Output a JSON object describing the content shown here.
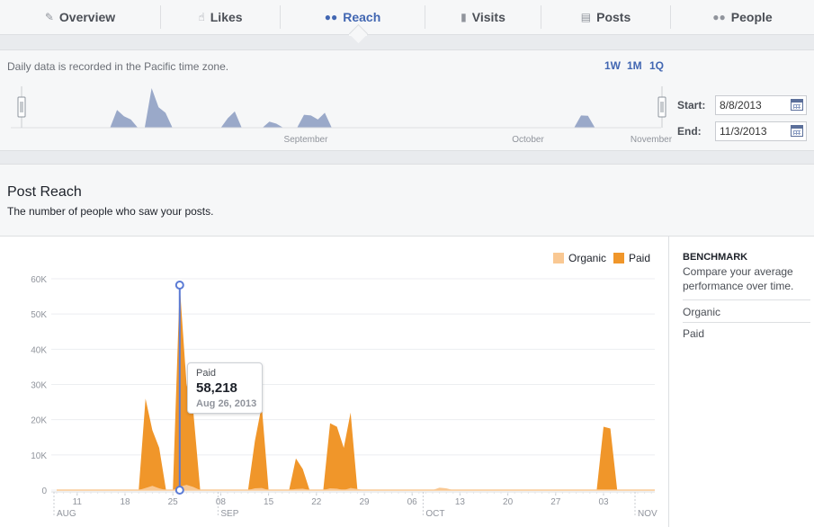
{
  "tabs": [
    {
      "label": "Overview",
      "icon": "megaphone-icon"
    },
    {
      "label": "Likes",
      "icon": "thumbs-up-icon"
    },
    {
      "label": "Reach",
      "icon": "people-icon",
      "active": true
    },
    {
      "label": "Visits",
      "icon": "bar-chart-icon"
    },
    {
      "label": "Posts",
      "icon": "posts-icon"
    },
    {
      "label": "People",
      "icon": "people-group-icon"
    }
  ],
  "range_selector": {
    "note": "Daily data is recorded in the Pacific time zone.",
    "buttons": [
      "1W",
      "1M",
      "1Q"
    ],
    "month_labels": [
      "September",
      "October",
      "November"
    ],
    "start_label": "Start:",
    "start_value": "8/8/2013",
    "end_label": "End:",
    "end_value": "11/3/2013",
    "accent": "#9aa9c9"
  },
  "post_reach": {
    "title": "Post Reach",
    "subtitle": "The number of people who saw your posts."
  },
  "benchmark": {
    "title": "BENCHMARK",
    "description": "Compare your average performance over time.",
    "items": [
      "Organic",
      "Paid"
    ]
  },
  "tooltip": {
    "series": "Paid",
    "value": "58,218",
    "date": "Aug 26, 2013"
  },
  "chart_data": {
    "type": "area",
    "start_date": "2013-08-08",
    "y_ticks": [
      "0",
      "10K",
      "20K",
      "30K",
      "40K",
      "50K",
      "60K"
    ],
    "ylim": [
      0,
      60000
    ],
    "x_tick_labels": [
      "11",
      "18",
      "25",
      "08",
      "15",
      "22",
      "29",
      "06",
      "13",
      "20",
      "27",
      "03"
    ],
    "x_month_labels": [
      "AUG",
      "SEP",
      "OCT",
      "NOV"
    ],
    "legend_position": "top-right",
    "series": [
      {
        "name": "Organic",
        "color": "#f9c893",
        "values": [
          0,
          0,
          0,
          0,
          0,
          0,
          0,
          0,
          0,
          0,
          0,
          0,
          0,
          600,
          1200,
          500,
          0,
          0,
          1000,
          1500,
          900,
          0,
          0,
          0,
          0,
          0,
          0,
          0,
          0,
          500,
          600,
          0,
          0,
          0,
          0,
          300,
          400,
          0,
          0,
          0,
          500,
          400,
          0,
          600,
          300,
          0,
          0,
          0,
          0,
          0,
          0,
          0,
          0,
          0,
          0,
          0,
          700,
          500,
          0,
          0,
          0,
          0,
          0,
          0,
          0,
          0,
          0,
          0,
          0,
          0,
          0,
          0,
          0,
          0,
          0,
          0,
          0,
          0,
          0,
          0,
          0,
          0,
          0,
          0,
          0,
          0,
          0,
          0
        ]
      },
      {
        "name": "Paid",
        "color": "#f0962a",
        "values": [
          0,
          0,
          0,
          0,
          0,
          0,
          0,
          0,
          0,
          0,
          0,
          0,
          0,
          26000,
          17000,
          12000,
          0,
          0,
          58218,
          30000,
          22000,
          0,
          0,
          0,
          0,
          0,
          0,
          0,
          0,
          14000,
          24000,
          0,
          0,
          0,
          0,
          9000,
          6000,
          0,
          0,
          0,
          19000,
          18000,
          12000,
          22000,
          0,
          0,
          0,
          0,
          0,
          0,
          0,
          0,
          0,
          0,
          0,
          0,
          0,
          0,
          0,
          0,
          0,
          0,
          0,
          0,
          0,
          0,
          0,
          0,
          0,
          0,
          0,
          0,
          0,
          0,
          0,
          0,
          0,
          0,
          0,
          0,
          18000,
          17500,
          0,
          0,
          0,
          0,
          0,
          0
        ]
      }
    ]
  }
}
